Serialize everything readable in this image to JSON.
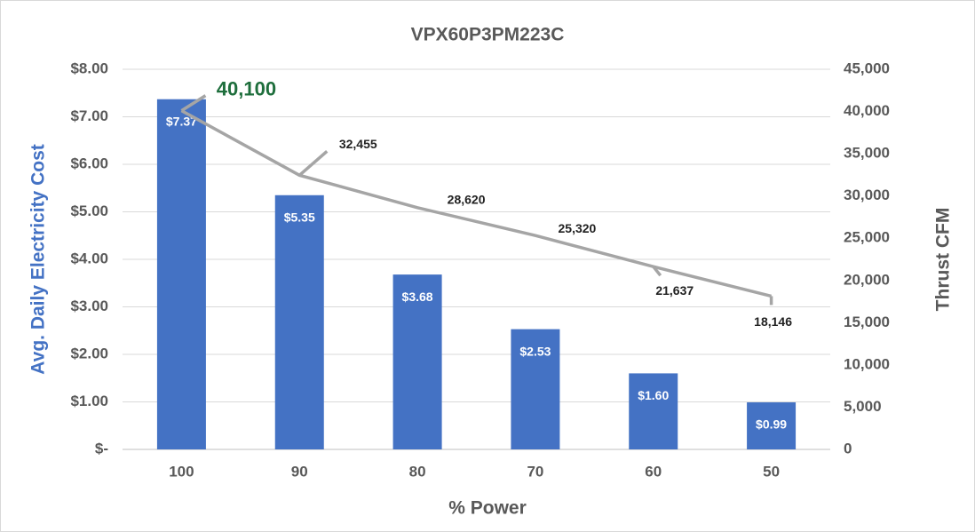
{
  "chart_data": {
    "type": "bar",
    "title": "VPX60P3PM223C",
    "x_label": "% Power",
    "y_label": "Avg. Daily Electricity Cost",
    "y2_label": "Thrust CFM",
    "categories": [
      "100",
      "90",
      "80",
      "70",
      "60",
      "50"
    ],
    "series": [
      {
        "type": "bar",
        "color": "#4472c4",
        "values": [
          7.37,
          5.35,
          3.68,
          2.53,
          1.6,
          0.99
        ],
        "value_labels": [
          "$7.37",
          "$5.35",
          "$3.68",
          "$2.53",
          "$1.60",
          "$0.99"
        ]
      },
      {
        "type": "line",
        "axis": "y2",
        "color": "#a5a5a5",
        "values": [
          40100,
          32455,
          28620,
          25320,
          21637,
          18146
        ],
        "value_labels": [
          "40,100",
          "32,455",
          "28,620",
          "25,320",
          "21,637",
          "18,146"
        ]
      }
    ],
    "ylim": [
      0,
      8
    ],
    "yticks": [
      {
        "value": 0,
        "label": "$-"
      },
      {
        "value": 1,
        "label": "$1.00"
      },
      {
        "value": 2,
        "label": "$2.00"
      },
      {
        "value": 3,
        "label": "$3.00"
      },
      {
        "value": 4,
        "label": "$4.00"
      },
      {
        "value": 5,
        "label": "$5.00"
      },
      {
        "value": 6,
        "label": "$6.00"
      },
      {
        "value": 7,
        "label": "$7.00"
      },
      {
        "value": 8,
        "label": "$8.00"
      }
    ],
    "y2lim": [
      0,
      45000
    ],
    "y2ticks": [
      0,
      {
        "value": 5000,
        "label": "5,000"
      },
      {
        "value": 10000,
        "label": "10,000"
      },
      {
        "value": 15000,
        "label": "15,000"
      },
      {
        "value": 20000,
        "label": "20,000"
      },
      {
        "value": 25000,
        "label": "25,000"
      },
      {
        "value": 30000,
        "label": "30,000"
      },
      {
        "value": 35000,
        "label": "35,000"
      },
      {
        "value": 40000,
        "label": "40,000"
      },
      {
        "value": 45000,
        "label": "45,000"
      }
    ],
    "grid": true
  }
}
